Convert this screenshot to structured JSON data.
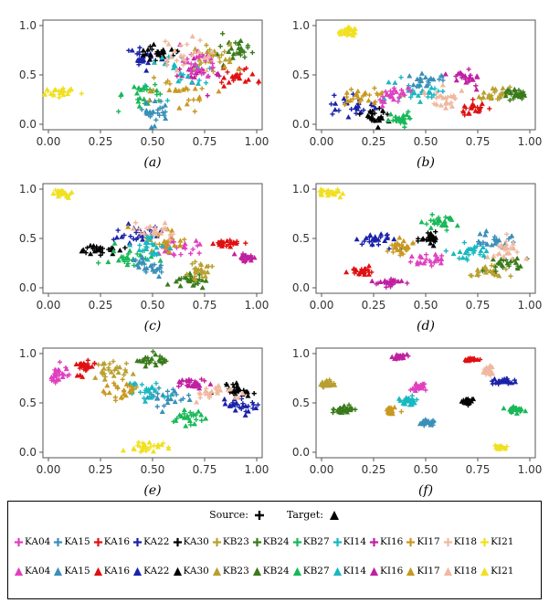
{
  "chart_data": [
    {
      "panel": "a",
      "type": "scatter",
      "caption": "(a)",
      "xlim": [
        0,
        1
      ],
      "ylim": [
        0,
        1
      ],
      "xticks": [
        "0.00",
        "0.25",
        "0.50",
        "0.75",
        "1.00"
      ],
      "yticks": [
        "0.0",
        "0.5",
        "1.0"
      ],
      "clusters": [
        {
          "label": "KI21",
          "cx": 0.06,
          "cy": 0.33,
          "sx": 0.035,
          "sy": 0.03
        },
        {
          "label": "KA22",
          "cx": 0.45,
          "cy": 0.67,
          "sx": 0.05,
          "sy": 0.05
        },
        {
          "label": "KA30",
          "cx": 0.52,
          "cy": 0.72,
          "sx": 0.04,
          "sy": 0.04
        },
        {
          "label": "KB24",
          "cx": 0.9,
          "cy": 0.82,
          "sx": 0.05,
          "sy": 0.08
        },
        {
          "label": "KA16",
          "cx": 0.92,
          "cy": 0.48,
          "sx": 0.04,
          "sy": 0.05
        },
        {
          "label": "KI16",
          "cx": 0.72,
          "cy": 0.5,
          "sx": 0.07,
          "sy": 0.1
        },
        {
          "label": "KI14",
          "cx": 0.62,
          "cy": 0.55,
          "sx": 0.08,
          "sy": 0.1
        },
        {
          "label": "KB27",
          "cx": 0.45,
          "cy": 0.3,
          "sx": 0.06,
          "sy": 0.06
        },
        {
          "label": "KA15",
          "cx": 0.52,
          "cy": 0.12,
          "sx": 0.03,
          "sy": 0.06
        },
        {
          "label": "KB23",
          "cx": 0.8,
          "cy": 0.68,
          "sx": 0.06,
          "sy": 0.08
        },
        {
          "label": "KI17",
          "cx": 0.6,
          "cy": 0.3,
          "sx": 0.08,
          "sy": 0.08
        },
        {
          "label": "KA04",
          "cx": 0.7,
          "cy": 0.62,
          "sx": 0.06,
          "sy": 0.08
        },
        {
          "label": "KI18",
          "cx": 0.66,
          "cy": 0.7,
          "sx": 0.06,
          "sy": 0.08
        }
      ]
    },
    {
      "panel": "b",
      "type": "scatter",
      "caption": "(b)",
      "xlim": [
        0,
        1
      ],
      "ylim": [
        0,
        1
      ],
      "xticks": [
        "0.00",
        "0.25",
        "0.50",
        "0.75",
        "1.00"
      ],
      "yticks": [
        "0.0",
        "0.5",
        "1.0"
      ],
      "clusters": [
        {
          "label": "KI21",
          "cx": 0.13,
          "cy": 0.93,
          "sx": 0.025,
          "sy": 0.03
        },
        {
          "label": "KA22",
          "cx": 0.12,
          "cy": 0.18,
          "sx": 0.06,
          "sy": 0.05
        },
        {
          "label": "KA30",
          "cx": 0.25,
          "cy": 0.1,
          "sx": 0.03,
          "sy": 0.04
        },
        {
          "label": "KB27",
          "cx": 0.38,
          "cy": 0.06,
          "sx": 0.04,
          "sy": 0.03
        },
        {
          "label": "KI16",
          "cx": 0.7,
          "cy": 0.48,
          "sx": 0.03,
          "sy": 0.04
        },
        {
          "label": "KA16",
          "cx": 0.73,
          "cy": 0.15,
          "sx": 0.03,
          "sy": 0.04
        },
        {
          "label": "KB23",
          "cx": 0.83,
          "cy": 0.3,
          "sx": 0.04,
          "sy": 0.03
        },
        {
          "label": "KB24",
          "cx": 0.93,
          "cy": 0.31,
          "sx": 0.03,
          "sy": 0.03
        },
        {
          "label": "KI14",
          "cx": 0.45,
          "cy": 0.35,
          "sx": 0.06,
          "sy": 0.06
        },
        {
          "label": "KA15",
          "cx": 0.5,
          "cy": 0.45,
          "sx": 0.04,
          "sy": 0.04
        },
        {
          "label": "KI17",
          "cx": 0.2,
          "cy": 0.3,
          "sx": 0.06,
          "sy": 0.05
        },
        {
          "label": "KA04",
          "cx": 0.35,
          "cy": 0.3,
          "sx": 0.05,
          "sy": 0.05
        },
        {
          "label": "KI18",
          "cx": 0.58,
          "cy": 0.25,
          "sx": 0.05,
          "sy": 0.05
        }
      ]
    },
    {
      "panel": "c",
      "type": "scatter",
      "caption": "(c)",
      "xlim": [
        0,
        1
      ],
      "ylim": [
        0,
        1
      ],
      "xticks": [
        "0.00",
        "0.25",
        "0.50",
        "0.75",
        "1.00"
      ],
      "yticks": [
        "0.0",
        "0.5",
        "1.0"
      ],
      "clusters": [
        {
          "label": "KI21",
          "cx": 0.06,
          "cy": 0.95,
          "sx": 0.03,
          "sy": 0.02
        },
        {
          "label": "KA30",
          "cx": 0.25,
          "cy": 0.38,
          "sx": 0.04,
          "sy": 0.03
        },
        {
          "label": "KA22",
          "cx": 0.42,
          "cy": 0.55,
          "sx": 0.05,
          "sy": 0.05
        },
        {
          "label": "KB27",
          "cx": 0.4,
          "cy": 0.3,
          "sx": 0.06,
          "sy": 0.06
        },
        {
          "label": "KA15",
          "cx": 0.48,
          "cy": 0.2,
          "sx": 0.05,
          "sy": 0.05
        },
        {
          "label": "KB24",
          "cx": 0.68,
          "cy": 0.08,
          "sx": 0.04,
          "sy": 0.04
        },
        {
          "label": "KB23",
          "cx": 0.72,
          "cy": 0.18,
          "sx": 0.03,
          "sy": 0.05
        },
        {
          "label": "KA16",
          "cx": 0.86,
          "cy": 0.45,
          "sx": 0.03,
          "sy": 0.02
        },
        {
          "label": "KI16",
          "cx": 0.95,
          "cy": 0.3,
          "sx": 0.02,
          "sy": 0.03
        },
        {
          "label": "KA04",
          "cx": 0.62,
          "cy": 0.4,
          "sx": 0.06,
          "sy": 0.05
        },
        {
          "label": "KI17",
          "cx": 0.55,
          "cy": 0.48,
          "sx": 0.06,
          "sy": 0.06
        },
        {
          "label": "KI18",
          "cx": 0.5,
          "cy": 0.58,
          "sx": 0.05,
          "sy": 0.04
        },
        {
          "label": "KI14",
          "cx": 0.5,
          "cy": 0.42,
          "sx": 0.05,
          "sy": 0.05
        }
      ]
    },
    {
      "panel": "d",
      "type": "scatter",
      "caption": "(d)",
      "xlim": [
        0,
        1
      ],
      "ylim": [
        0,
        1
      ],
      "xticks": [
        "0.00",
        "0.25",
        "0.50",
        "0.75",
        "1.00"
      ],
      "yticks": [
        "0.0",
        "0.5",
        "1.0"
      ],
      "clusters": [
        {
          "label": "KI21",
          "cx": 0.05,
          "cy": 0.96,
          "sx": 0.03,
          "sy": 0.02
        },
        {
          "label": "KA16",
          "cx": 0.2,
          "cy": 0.16,
          "sx": 0.03,
          "sy": 0.02
        },
        {
          "label": "KI16",
          "cx": 0.33,
          "cy": 0.05,
          "sx": 0.04,
          "sy": 0.02
        },
        {
          "label": "KA22",
          "cx": 0.28,
          "cy": 0.48,
          "sx": 0.05,
          "sy": 0.04
        },
        {
          "label": "KB27",
          "cx": 0.57,
          "cy": 0.67,
          "sx": 0.04,
          "sy": 0.03
        },
        {
          "label": "KA30",
          "cx": 0.52,
          "cy": 0.5,
          "sx": 0.03,
          "sy": 0.03
        },
        {
          "label": "KA04",
          "cx": 0.52,
          "cy": 0.28,
          "sx": 0.04,
          "sy": 0.03
        },
        {
          "label": "KA15",
          "cx": 0.82,
          "cy": 0.48,
          "sx": 0.06,
          "sy": 0.04
        },
        {
          "label": "KI14",
          "cx": 0.7,
          "cy": 0.38,
          "sx": 0.05,
          "sy": 0.04
        },
        {
          "label": "KB23",
          "cx": 0.8,
          "cy": 0.16,
          "sx": 0.05,
          "sy": 0.03
        },
        {
          "label": "KB24",
          "cx": 0.88,
          "cy": 0.25,
          "sx": 0.04,
          "sy": 0.04
        },
        {
          "label": "KI17",
          "cx": 0.4,
          "cy": 0.42,
          "sx": 0.05,
          "sy": 0.04
        },
        {
          "label": "KI18",
          "cx": 0.88,
          "cy": 0.4,
          "sx": 0.04,
          "sy": 0.05
        }
      ]
    },
    {
      "panel": "e",
      "type": "scatter",
      "caption": "(e)",
      "xlim": [
        0,
        1
      ],
      "ylim": [
        0,
        1
      ],
      "xticks": [
        "0.00",
        "0.25",
        "0.50",
        "0.75",
        "1.00"
      ],
      "yticks": [
        "0.0",
        "0.5",
        "1.0"
      ],
      "clusters": [
        {
          "label": "KA04",
          "cx": 0.06,
          "cy": 0.78,
          "sx": 0.03,
          "sy": 0.04
        },
        {
          "label": "KA16",
          "cx": 0.17,
          "cy": 0.87,
          "sx": 0.03,
          "sy": 0.04
        },
        {
          "label": "KB23",
          "cx": 0.3,
          "cy": 0.83,
          "sx": 0.05,
          "sy": 0.04
        },
        {
          "label": "KB24",
          "cx": 0.5,
          "cy": 0.93,
          "sx": 0.04,
          "sy": 0.03
        },
        {
          "label": "KI21",
          "cx": 0.47,
          "cy": 0.06,
          "sx": 0.04,
          "sy": 0.03
        },
        {
          "label": "KA30",
          "cx": 0.9,
          "cy": 0.63,
          "sx": 0.04,
          "sy": 0.04
        },
        {
          "label": "KA22",
          "cx": 0.92,
          "cy": 0.47,
          "sx": 0.04,
          "sy": 0.03
        },
        {
          "label": "KB27",
          "cx": 0.66,
          "cy": 0.36,
          "sx": 0.04,
          "sy": 0.04
        },
        {
          "label": "KI16",
          "cx": 0.68,
          "cy": 0.7,
          "sx": 0.04,
          "sy": 0.03
        },
        {
          "label": "KA15",
          "cx": 0.58,
          "cy": 0.55,
          "sx": 0.06,
          "sy": 0.05
        },
        {
          "label": "KI14",
          "cx": 0.48,
          "cy": 0.62,
          "sx": 0.05,
          "sy": 0.05
        },
        {
          "label": "KI17",
          "cx": 0.35,
          "cy": 0.62,
          "sx": 0.05,
          "sy": 0.05
        },
        {
          "label": "KI18",
          "cx": 0.8,
          "cy": 0.6,
          "sx": 0.05,
          "sy": 0.04
        }
      ]
    },
    {
      "panel": "f",
      "type": "scatter",
      "caption": "(f)",
      "xlim": [
        0,
        1
      ],
      "ylim": [
        0,
        1
      ],
      "xticks": [
        "0.00",
        "0.25",
        "0.50",
        "0.75",
        "1.00"
      ],
      "yticks": [
        "0.0",
        "0.5",
        "1.0"
      ],
      "clusters": [
        {
          "label": "KB23",
          "cx": 0.03,
          "cy": 0.69,
          "sx": 0.015,
          "sy": 0.015
        },
        {
          "label": "KB24",
          "cx": 0.1,
          "cy": 0.43,
          "sx": 0.025,
          "sy": 0.015
        },
        {
          "label": "KI17",
          "cx": 0.33,
          "cy": 0.42,
          "sx": 0.015,
          "sy": 0.015
        },
        {
          "label": "KI16",
          "cx": 0.38,
          "cy": 0.97,
          "sx": 0.02,
          "sy": 0.01
        },
        {
          "label": "KI14",
          "cx": 0.42,
          "cy": 0.52,
          "sx": 0.02,
          "sy": 0.02
        },
        {
          "label": "KA04",
          "cx": 0.47,
          "cy": 0.66,
          "sx": 0.02,
          "sy": 0.015
        },
        {
          "label": "KA15",
          "cx": 0.5,
          "cy": 0.3,
          "sx": 0.02,
          "sy": 0.015
        },
        {
          "label": "KA16",
          "cx": 0.72,
          "cy": 0.94,
          "sx": 0.02,
          "sy": 0.01
        },
        {
          "label": "KI18",
          "cx": 0.8,
          "cy": 0.82,
          "sx": 0.02,
          "sy": 0.02
        },
        {
          "label": "KA22",
          "cx": 0.88,
          "cy": 0.72,
          "sx": 0.03,
          "sy": 0.015
        },
        {
          "label": "KA30",
          "cx": 0.7,
          "cy": 0.52,
          "sx": 0.015,
          "sy": 0.015
        },
        {
          "label": "KB27",
          "cx": 0.93,
          "cy": 0.43,
          "sx": 0.02,
          "sy": 0.015
        },
        {
          "label": "KI21",
          "cx": 0.86,
          "cy": 0.05,
          "sx": 0.015,
          "sy": 0.01
        }
      ]
    }
  ],
  "legend": {
    "source_label": "Source:",
    "target_label": "Target:",
    "classes": [
      {
        "label": "KA04",
        "color": "#e040c0"
      },
      {
        "label": "KA15",
        "color": "#3a8fb8"
      },
      {
        "label": "KA16",
        "color": "#e01010"
      },
      {
        "label": "KA22",
        "color": "#1a22a8"
      },
      {
        "label": "KA30",
        "color": "#000000"
      },
      {
        "label": "KB23",
        "color": "#b8a030"
      },
      {
        "label": "KB24",
        "color": "#3a7a1a"
      },
      {
        "label": "KB27",
        "color": "#18b858"
      },
      {
        "label": "KI14",
        "color": "#18b8c0"
      },
      {
        "label": "KI16",
        "color": "#c020a0"
      },
      {
        "label": "KI17",
        "color": "#c89820"
      },
      {
        "label": "KI18",
        "color": "#f0b8a0"
      },
      {
        "label": "KI21",
        "color": "#f0e020"
      }
    ]
  }
}
